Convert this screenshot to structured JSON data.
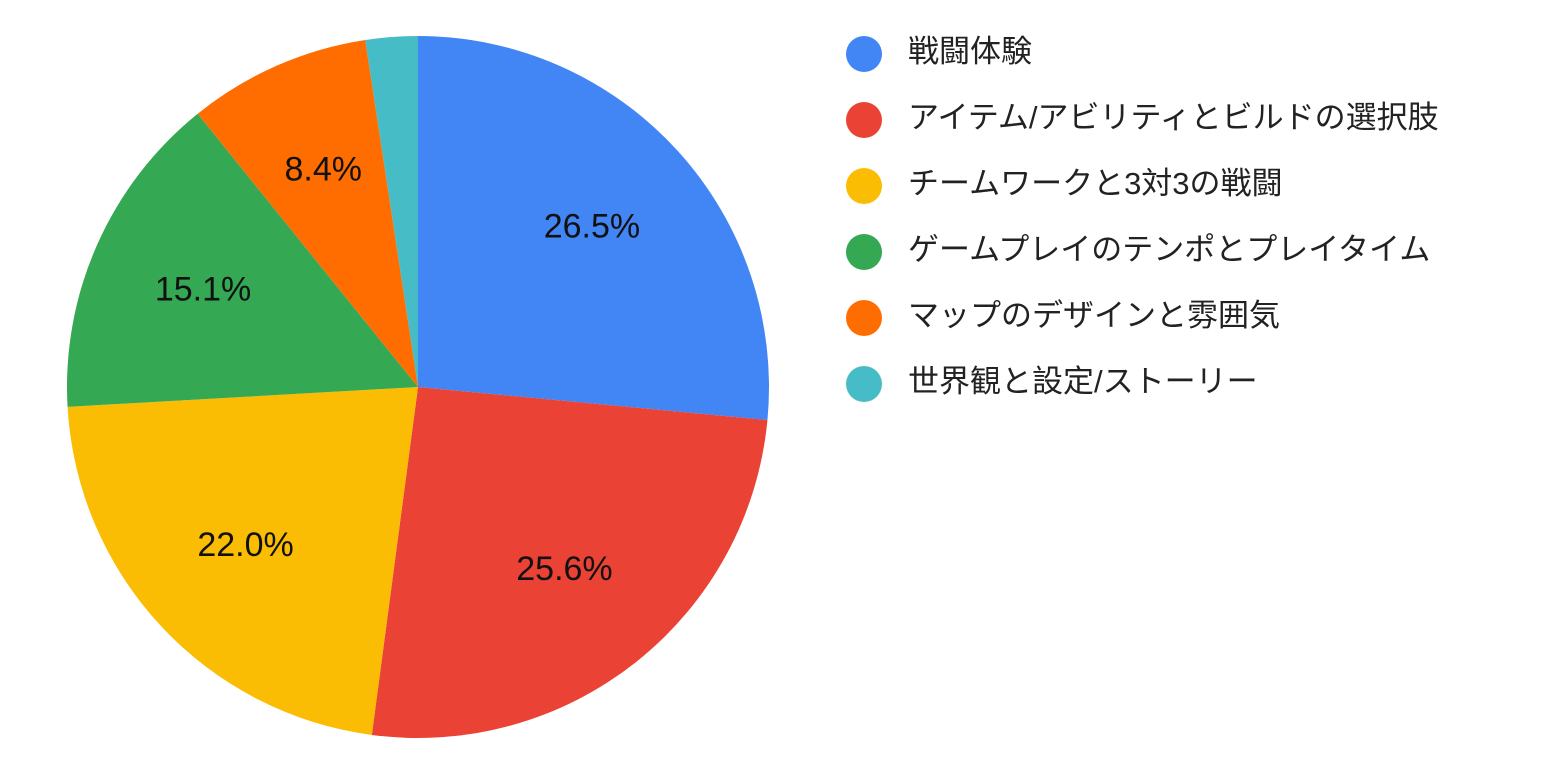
{
  "chart_data": {
    "type": "pie",
    "categories": [
      "戦闘体験",
      "アイテム/アビリティとビルドの選択肢",
      "チームワークと3対3の戦闘",
      "ゲームプレイのテンポとプレイタイム",
      "マップのデザインと雰囲気",
      "世界観と設定/ストーリー"
    ],
    "values": [
      26.5,
      25.6,
      22.0,
      15.1,
      8.4,
      2.4
    ],
    "value_labels": [
      "26.5%",
      "25.6%",
      "22.0%",
      "15.1%",
      "8.4%",
      null
    ],
    "colors": [
      "#4285f4",
      "#ea4335",
      "#fbbc04",
      "#34a853",
      "#ff6d01",
      "#46bdc6"
    ],
    "legend": "right"
  }
}
